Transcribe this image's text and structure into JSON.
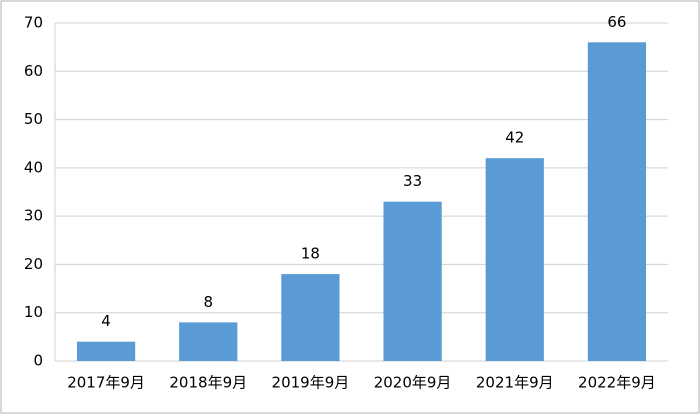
{
  "chart_data": {
    "type": "bar",
    "categories": [
      "2017年9月",
      "2018年9月",
      "2019年9月",
      "2020年9月",
      "2021年9月",
      "2022年9月"
    ],
    "values": [
      4,
      8,
      18,
      33,
      42,
      66
    ],
    "color": "#5b9bd5",
    "ylim": [
      0,
      70
    ],
    "yticks": [
      0,
      10,
      20,
      30,
      40,
      50,
      60,
      70
    ],
    "grid": true
  }
}
